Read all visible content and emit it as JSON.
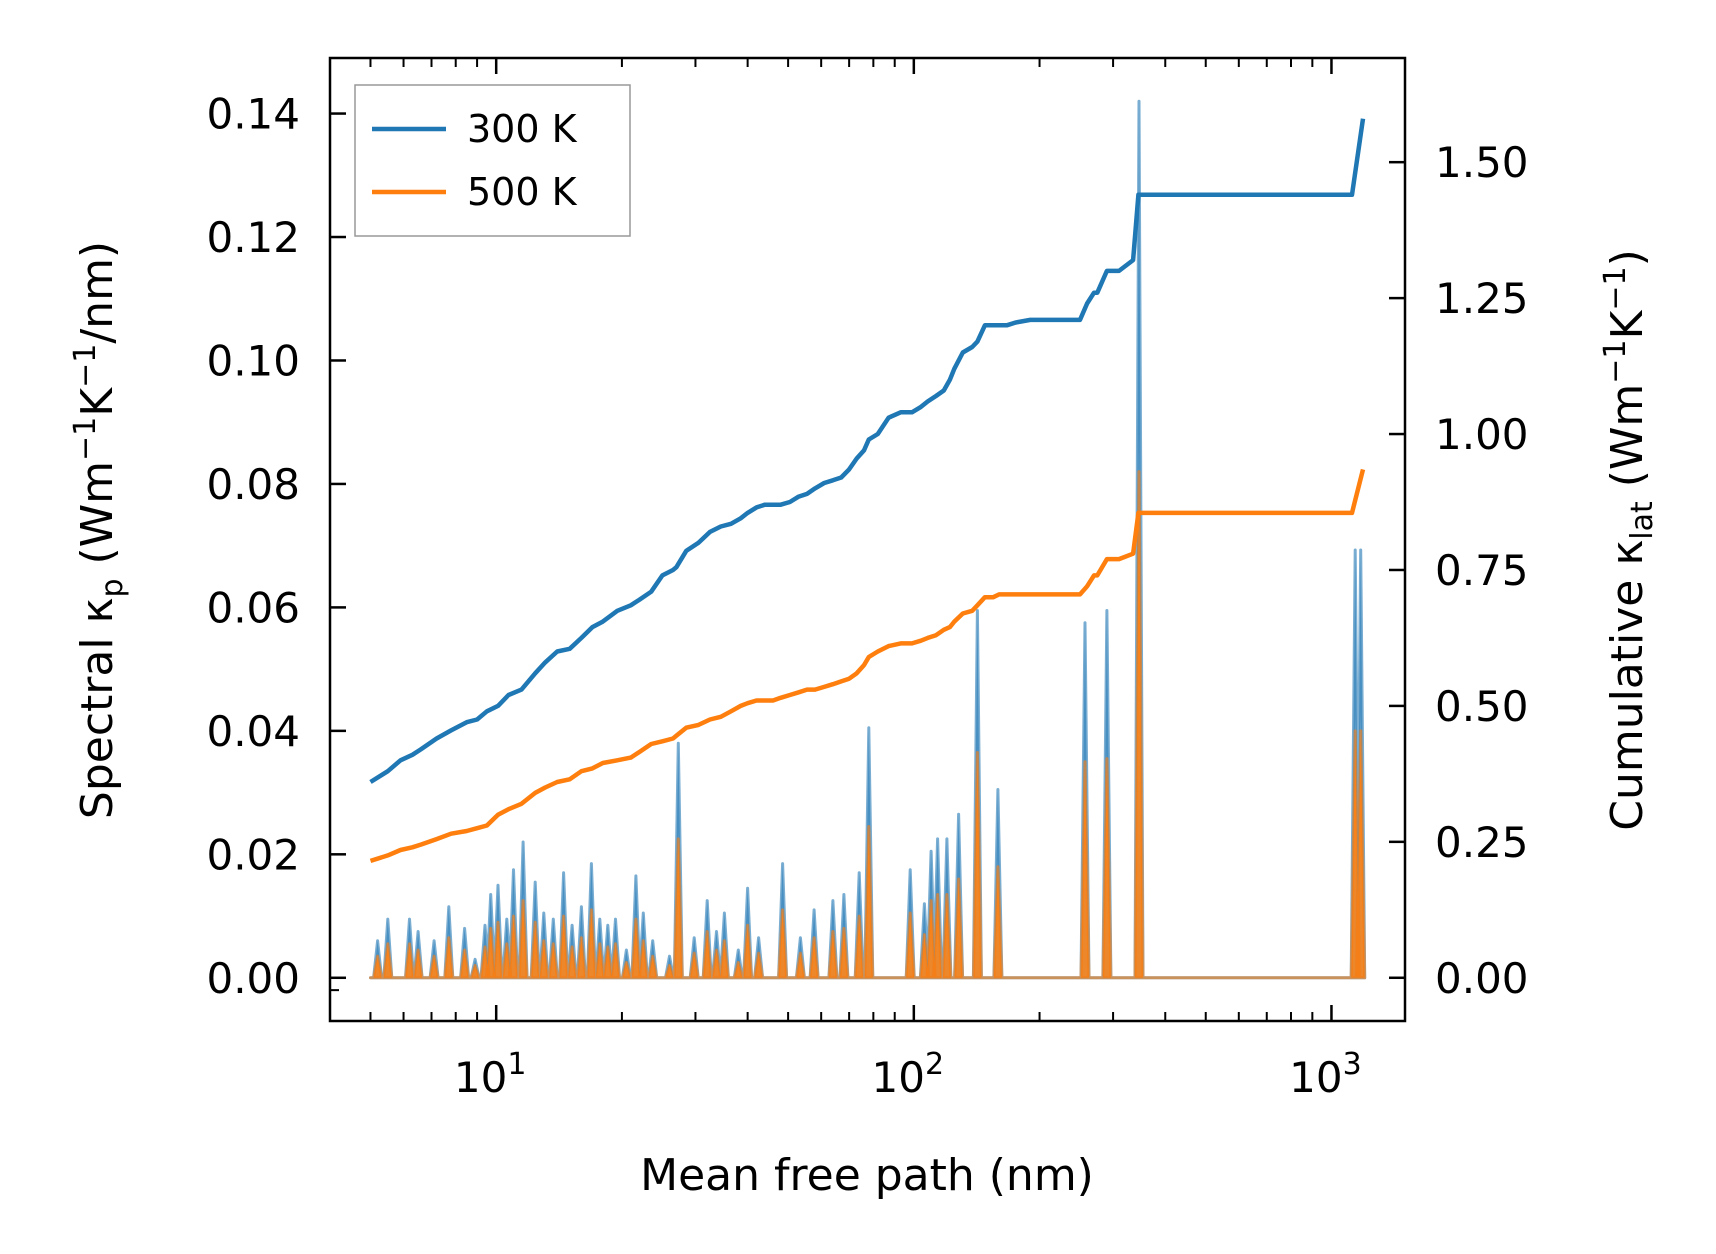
{
  "chart_data": {
    "type": "line",
    "title": "",
    "xlabel": "Mean free path (nm)",
    "xscale": "log",
    "xlim": [
      4,
      1500
    ],
    "x_ticks": [
      {
        "value": 10,
        "base": "10",
        "exp": "1"
      },
      {
        "value": 100,
        "base": "10",
        "exp": "2"
      },
      {
        "value": 1000,
        "base": "10",
        "exp": "3"
      }
    ],
    "ylabel_left": {
      "main": "Spectral κ",
      "sub": "p",
      "unit_a": " (Wm",
      "sup1": "−1",
      "unit_b": "K",
      "sup2": "−1",
      "unit_c": "/nm)"
    },
    "ylim_left": [
      -0.007,
      0.149
    ],
    "y_ticks_left": [
      "0.00",
      "0.02",
      "0.04",
      "0.06",
      "0.08",
      "0.10",
      "0.12",
      "0.14"
    ],
    "ylabel_right": {
      "main": "Cumulative κ",
      "sub": "lat",
      "unit_a": " (Wm",
      "sup1": "−1",
      "unit_b": "K",
      "sup2": "−1",
      "unit_c": ")"
    },
    "ylim_right": [
      -0.0795,
      1.6916
    ],
    "y_ticks_right": [
      "0.00",
      "0.25",
      "0.50",
      "0.75",
      "1.00",
      "1.25",
      "1.50"
    ],
    "legend_position": "upper-left",
    "series": [
      {
        "name": "300 K",
        "color": "#1f77b4",
        "axis": "right",
        "kind": "cumulative",
        "x": [
          5.0,
          5.5,
          5.9,
          6.3,
          6.6,
          7.2,
          7.8,
          8.5,
          9.0,
          9.5,
          10.1,
          10.7,
          11.5,
          12.4,
          13.1,
          14.0,
          15.0,
          16.0,
          17.0,
          18.0,
          19.5,
          21.0,
          22.0,
          23.5,
          25.0,
          26.5,
          27.0,
          28.5,
          30.5,
          32.5,
          34.5,
          36.5,
          38.5,
          40.0,
          42.0,
          44.0,
          46.0,
          48.0,
          50.5,
          53.0,
          55.5,
          58.0,
          61.0,
          64.0,
          67.0,
          70.0,
          73.0,
          76.0,
          78.0,
          82.0,
          87.0,
          93.0,
          99.0,
          104.0,
          108.0,
          113.0,
          118.0,
          122.0,
          125.0,
          131.0,
          138.0,
          142.0,
          148.0,
          155.0,
          160.0,
          167.0,
          175.0,
          190.0,
          210.0,
          230.0,
          250.0,
          260.0,
          270.0,
          275.0,
          290.0,
          310.0,
          335.0,
          345.0,
          1100.0,
          1120.0,
          1190.0
        ],
        "y": [
          0.36,
          0.38,
          0.4,
          0.41,
          0.42,
          0.44,
          0.455,
          0.47,
          0.475,
          0.49,
          0.5,
          0.52,
          0.53,
          0.56,
          0.58,
          0.6,
          0.605,
          0.625,
          0.645,
          0.655,
          0.675,
          0.685,
          0.695,
          0.71,
          0.74,
          0.75,
          0.755,
          0.785,
          0.8,
          0.82,
          0.83,
          0.835,
          0.845,
          0.855,
          0.865,
          0.87,
          0.87,
          0.87,
          0.875,
          0.885,
          0.89,
          0.9,
          0.91,
          0.915,
          0.92,
          0.935,
          0.955,
          0.97,
          0.99,
          1.0,
          1.03,
          1.04,
          1.04,
          1.05,
          1.06,
          1.07,
          1.08,
          1.1,
          1.12,
          1.15,
          1.16,
          1.17,
          1.2,
          1.2,
          1.2,
          1.2,
          1.205,
          1.21,
          1.21,
          1.21,
          1.21,
          1.24,
          1.26,
          1.26,
          1.3,
          1.3,
          1.32,
          1.44,
          1.44,
          1.44,
          1.58
        ],
        "spectral_peaks": [
          [
            5.2,
            0.006
          ],
          [
            5.5,
            0.0095
          ],
          [
            6.2,
            0.0095
          ],
          [
            6.5,
            0.0075
          ],
          [
            7.1,
            0.006
          ],
          [
            7.7,
            0.0115
          ],
          [
            8.4,
            0.008
          ],
          [
            8.9,
            0.003
          ],
          [
            9.4,
            0.0085
          ],
          [
            9.7,
            0.0135
          ],
          [
            10.1,
            0.015
          ],
          [
            10.6,
            0.0095
          ],
          [
            11.0,
            0.0175
          ],
          [
            11.6,
            0.022
          ],
          [
            12.4,
            0.0155
          ],
          [
            13.0,
            0.0105
          ],
          [
            13.7,
            0.0095
          ],
          [
            14.5,
            0.017
          ],
          [
            15.2,
            0.0085
          ],
          [
            16.0,
            0.0115
          ],
          [
            16.9,
            0.0185
          ],
          [
            17.7,
            0.0095
          ],
          [
            18.5,
            0.0085
          ],
          [
            19.3,
            0.0095
          ],
          [
            20.5,
            0.0045
          ],
          [
            21.6,
            0.0165
          ],
          [
            22.5,
            0.0105
          ],
          [
            23.7,
            0.006
          ],
          [
            26.0,
            0.0035
          ],
          [
            27.3,
            0.038
          ],
          [
            29.8,
            0.0065
          ],
          [
            32.0,
            0.0125
          ],
          [
            33.7,
            0.0075
          ],
          [
            35.2,
            0.0105
          ],
          [
            38.0,
            0.0045
          ],
          [
            40.0,
            0.0145
          ],
          [
            42.5,
            0.0065
          ],
          [
            48.5,
            0.0185
          ],
          [
            53.5,
            0.0065
          ],
          [
            57.7,
            0.011
          ],
          [
            64.0,
            0.0125
          ],
          [
            68.0,
            0.0135
          ],
          [
            74.0,
            0.017
          ],
          [
            78.0,
            0.0405
          ],
          [
            98.0,
            0.0175
          ],
          [
            106.0,
            0.012
          ],
          [
            110.0,
            0.0205
          ],
          [
            114.0,
            0.0225
          ],
          [
            120.0,
            0.0225
          ],
          [
            128.0,
            0.0265
          ],
          [
            142.0,
            0.0595
          ],
          [
            159.0,
            0.0305
          ],
          [
            257.0,
            0.0575
          ],
          [
            290.0,
            0.0595
          ],
          [
            346.0,
            0.142
          ],
          [
            1140.0,
            0.0693
          ],
          [
            1175.0,
            0.0693
          ]
        ]
      },
      {
        "name": "500 K",
        "color": "#ff7f0e",
        "axis": "right",
        "kind": "cumulative",
        "x": [
          5.0,
          5.5,
          5.9,
          6.3,
          6.6,
          7.2,
          7.8,
          8.5,
          9.0,
          9.5,
          10.1,
          10.7,
          11.5,
          12.4,
          13.1,
          14.0,
          15.0,
          16.0,
          17.0,
          18.0,
          19.5,
          21.0,
          22.0,
          23.5,
          25.0,
          26.5,
          27.0,
          28.5,
          30.5,
          32.5,
          34.5,
          36.5,
          38.5,
          40.0,
          42.0,
          44.0,
          46.0,
          48.0,
          50.5,
          53.0,
          55.5,
          58.0,
          61.0,
          64.0,
          67.0,
          70.0,
          73.0,
          76.0,
          78.0,
          82.0,
          87.0,
          93.0,
          99.0,
          104.0,
          108.0,
          113.0,
          118.0,
          122.0,
          125.0,
          131.0,
          138.0,
          142.0,
          148.0,
          155.0,
          160.0,
          167.0,
          175.0,
          190.0,
          210.0,
          230.0,
          250.0,
          260.0,
          270.0,
          275.0,
          290.0,
          310.0,
          335.0,
          345.0,
          1100.0,
          1120.0,
          1190.0
        ],
        "y": [
          0.215,
          0.225,
          0.235,
          0.24,
          0.245,
          0.255,
          0.265,
          0.27,
          0.275,
          0.28,
          0.3,
          0.31,
          0.32,
          0.34,
          0.35,
          0.36,
          0.365,
          0.38,
          0.385,
          0.395,
          0.4,
          0.405,
          0.415,
          0.43,
          0.435,
          0.44,
          0.445,
          0.46,
          0.465,
          0.475,
          0.48,
          0.49,
          0.5,
          0.505,
          0.51,
          0.51,
          0.51,
          0.515,
          0.52,
          0.525,
          0.53,
          0.53,
          0.535,
          0.54,
          0.545,
          0.55,
          0.56,
          0.575,
          0.59,
          0.6,
          0.61,
          0.615,
          0.615,
          0.62,
          0.625,
          0.63,
          0.64,
          0.645,
          0.655,
          0.67,
          0.675,
          0.685,
          0.7,
          0.7,
          0.705,
          0.705,
          0.705,
          0.705,
          0.705,
          0.705,
          0.705,
          0.72,
          0.74,
          0.74,
          0.77,
          0.77,
          0.78,
          0.855,
          0.855,
          0.855,
          0.935
        ],
        "spectral_peaks": [
          [
            5.2,
            0.0035
          ],
          [
            5.5,
            0.0055
          ],
          [
            6.2,
            0.0055
          ],
          [
            6.5,
            0.0045
          ],
          [
            7.1,
            0.0035
          ],
          [
            7.7,
            0.0065
          ],
          [
            8.4,
            0.0045
          ],
          [
            8.9,
            0.002
          ],
          [
            9.4,
            0.005
          ],
          [
            9.7,
            0.008
          ],
          [
            10.1,
            0.009
          ],
          [
            10.6,
            0.0055
          ],
          [
            11.0,
            0.01
          ],
          [
            11.6,
            0.0125
          ],
          [
            12.4,
            0.009
          ],
          [
            13.0,
            0.006
          ],
          [
            13.7,
            0.0055
          ],
          [
            14.5,
            0.01
          ],
          [
            15.2,
            0.005
          ],
          [
            16.0,
            0.0065
          ],
          [
            16.9,
            0.011
          ],
          [
            17.7,
            0.0055
          ],
          [
            18.5,
            0.005
          ],
          [
            19.3,
            0.0055
          ],
          [
            20.5,
            0.0025
          ],
          [
            21.6,
            0.0095
          ],
          [
            22.5,
            0.006
          ],
          [
            23.7,
            0.0035
          ],
          [
            26.0,
            0.002
          ],
          [
            27.3,
            0.0225
          ],
          [
            29.8,
            0.004
          ],
          [
            32.0,
            0.0075
          ],
          [
            33.7,
            0.0045
          ],
          [
            35.2,
            0.006
          ],
          [
            38.0,
            0.0025
          ],
          [
            40.0,
            0.0085
          ],
          [
            42.5,
            0.004
          ],
          [
            48.5,
            0.011
          ],
          [
            53.5,
            0.004
          ],
          [
            57.7,
            0.0065
          ],
          [
            64.0,
            0.0075
          ],
          [
            68.0,
            0.008
          ],
          [
            74.0,
            0.01
          ],
          [
            78.0,
            0.0245
          ],
          [
            98.0,
            0.0105
          ],
          [
            106.0,
            0.007
          ],
          [
            110.0,
            0.0125
          ],
          [
            114.0,
            0.0135
          ],
          [
            120.0,
            0.0135
          ],
          [
            128.0,
            0.016
          ],
          [
            142.0,
            0.0365
          ],
          [
            159.0,
            0.018
          ],
          [
            257.0,
            0.035
          ],
          [
            290.0,
            0.0355
          ],
          [
            346.0,
            0.082
          ],
          [
            1140.0,
            0.04
          ],
          [
            1175.0,
            0.04
          ]
        ]
      }
    ]
  }
}
